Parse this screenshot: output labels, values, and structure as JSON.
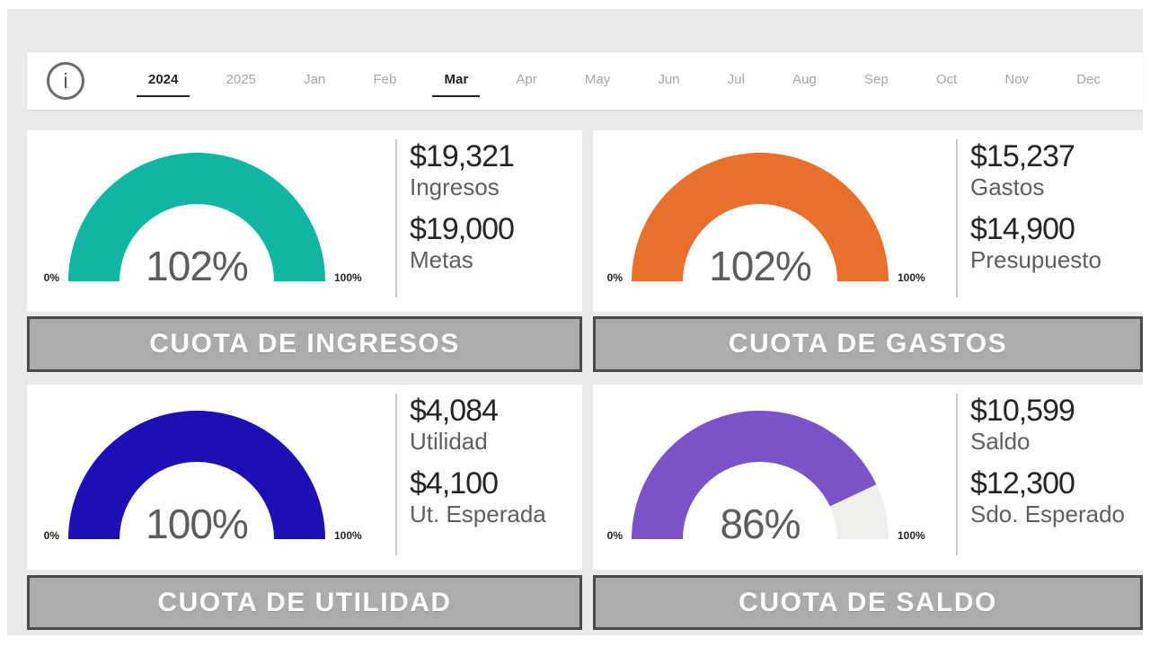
{
  "page": {
    "canvas_background": "#EAEAEA",
    "margin_color": "#FFFFFF"
  },
  "filter_bar": {
    "info_icon_label": "i",
    "items": [
      {
        "label": "2024",
        "type": "year",
        "selected": true
      },
      {
        "label": "2025",
        "type": "year",
        "selected": false
      },
      {
        "label": "Jan",
        "type": "month",
        "selected": false
      },
      {
        "label": "Feb",
        "type": "month",
        "selected": false
      },
      {
        "label": "Mar",
        "type": "month",
        "selected": true
      },
      {
        "label": "Apr",
        "type": "month",
        "selected": false
      },
      {
        "label": "May",
        "type": "month",
        "selected": false
      },
      {
        "label": "Jun",
        "type": "month",
        "selected": false
      },
      {
        "label": "Jul",
        "type": "month",
        "selected": false
      },
      {
        "label": "Aug",
        "type": "month",
        "selected": false
      },
      {
        "label": "Sep",
        "type": "month",
        "selected": false
      },
      {
        "label": "Oct",
        "type": "month",
        "selected": false
      },
      {
        "label": "Nov",
        "type": "month",
        "selected": false
      },
      {
        "label": "Dec",
        "type": "month",
        "selected": false
      }
    ]
  },
  "chart_data": [
    {
      "type": "gauge",
      "title": "CUOTA DE INGRESOS",
      "percent": 102,
      "center_label": "102%",
      "min_label": "0%",
      "max_label": "100%",
      "value": 19321,
      "value_text": "$19,321",
      "value_label": "Ingresos",
      "target": 19000,
      "target_text": "$19,000",
      "target_label": "Metas",
      "color": "#10B5A4",
      "track_color": "#F1EFEC"
    },
    {
      "type": "gauge",
      "title": "CUOTA DE GASTOS",
      "percent": 102,
      "center_label": "102%",
      "min_label": "0%",
      "max_label": "100%",
      "value": 15237,
      "value_text": "$15,237",
      "value_label": "Gastos",
      "target": 14900,
      "target_text": "$14,900",
      "target_label": "Presupuesto",
      "color": "#E8702A",
      "track_color": "#F1EFEC"
    },
    {
      "type": "gauge",
      "title": "CUOTA DE UTILIDAD",
      "percent": 100,
      "center_label": "100%",
      "min_label": "0%",
      "max_label": "100%",
      "value": 4084,
      "value_text": "$4,084",
      "value_label": "Utilidad",
      "target": 4100,
      "target_text": "$4,100",
      "target_label": "Ut. Esperada",
      "color": "#1C10B4",
      "track_color": "#F1EFEC"
    },
    {
      "type": "gauge",
      "title": "CUOTA DE SALDO",
      "percent": 86,
      "center_label": "86%",
      "min_label": "0%",
      "max_label": "100%",
      "value": 10599,
      "value_text": "$10,599",
      "value_label": "Saldo",
      "target": 12300,
      "target_text": "$12,300",
      "target_label": "Sdo. Esperado",
      "color": "#7B52C8",
      "track_color": "#F1EFEC"
    }
  ]
}
